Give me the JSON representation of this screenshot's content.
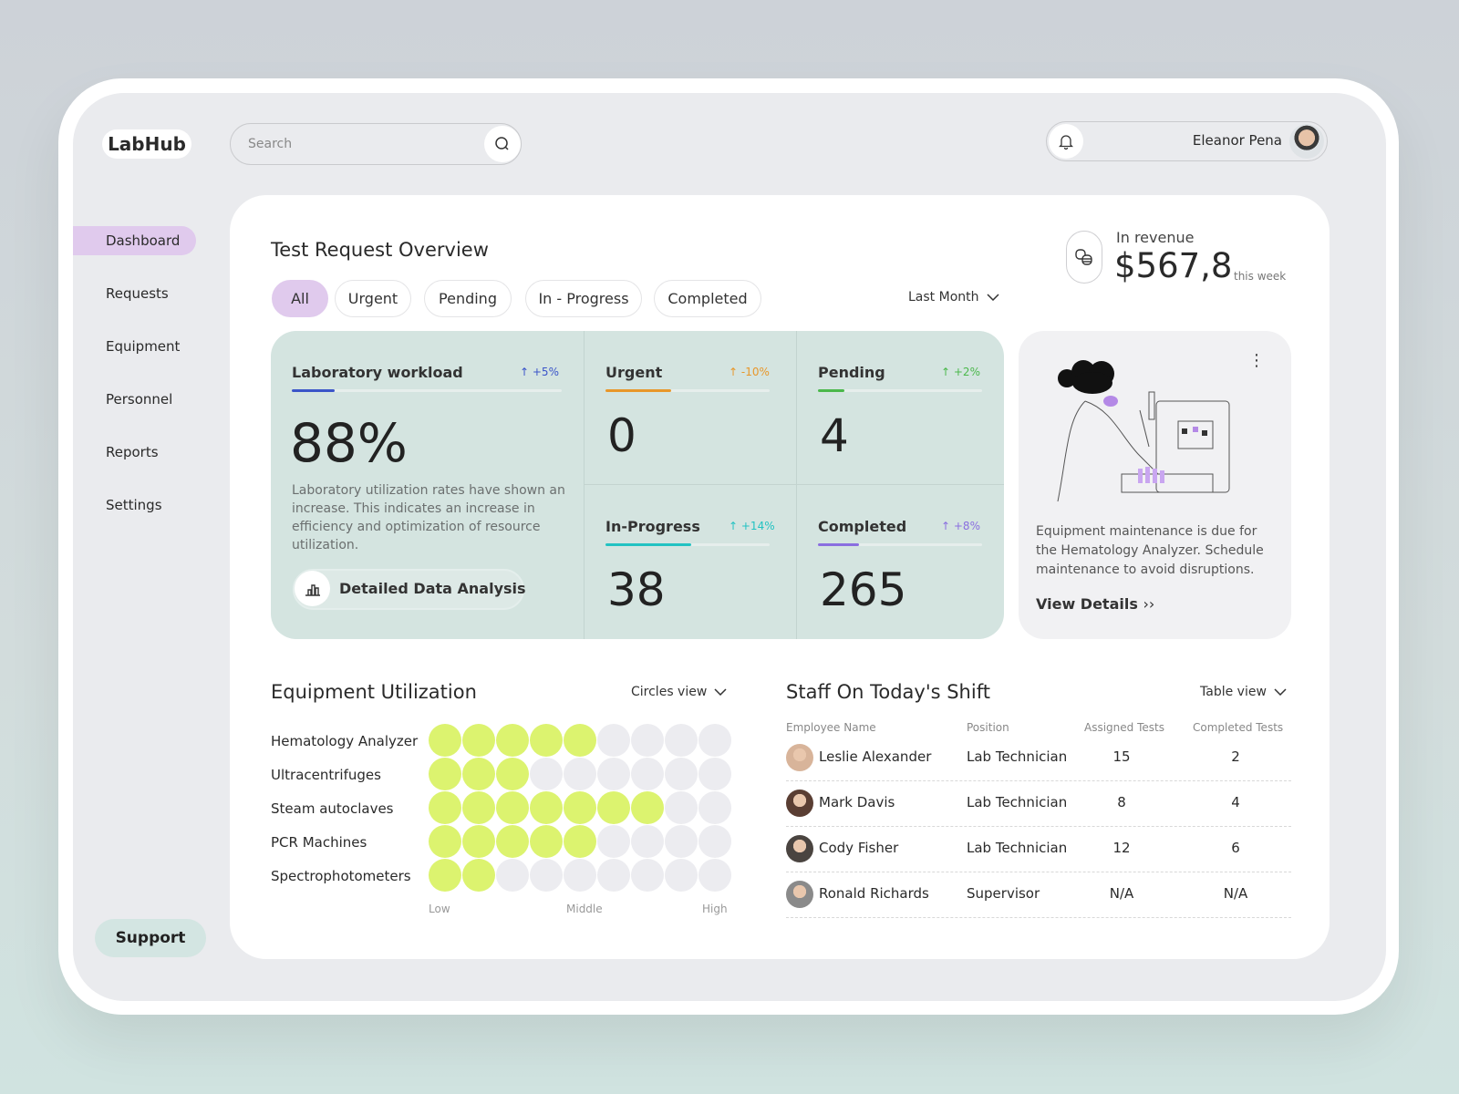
{
  "app": {
    "logo": "LabHub"
  },
  "header": {
    "search_placeholder": "Search",
    "user_name": "Eleanor Pena",
    "icons": {
      "search": "search-icon",
      "notification": "bell-icon"
    }
  },
  "sidebar": {
    "items": [
      {
        "label": "Dashboard",
        "active": true
      },
      {
        "label": "Requests"
      },
      {
        "label": "Equipment"
      },
      {
        "label": "Personnel"
      },
      {
        "label": "Reports"
      },
      {
        "label": "Settings"
      }
    ],
    "support": "Support"
  },
  "overview": {
    "title": "Test Request Overview",
    "filters": [
      {
        "label": "All",
        "active": true
      },
      {
        "label": "Urgent"
      },
      {
        "label": "Pending"
      },
      {
        "label": "In - Progress"
      },
      {
        "label": "Completed"
      }
    ],
    "period": "Last Month",
    "revenue": {
      "label": "In revenue",
      "value": "$567,8",
      "suffix": "this week"
    },
    "workload": {
      "label": "Laboratory workload",
      "delta": "+5%",
      "value": "88%",
      "progress": 0.16,
      "color": "#3b55c9",
      "description": "Laboratory utilization rates have shown an increase. This indicates an increase in efficiency and optimization of resource utilization.",
      "button": "Detailed Data Analysis"
    },
    "stats": [
      {
        "label": "Urgent",
        "delta": "-10%",
        "value": "0",
        "progress": 0.4,
        "color": "#e8972a"
      },
      {
        "label": "Pending",
        "delta": "+2%",
        "value": "4",
        "progress": 0.16,
        "color": "#4bb84b"
      },
      {
        "label": "In-Progress",
        "delta": "+14%",
        "value": "38",
        "progress": 0.52,
        "color": "#22c2c2"
      },
      {
        "label": "Completed",
        "delta": "+8%",
        "value": "265",
        "progress": 0.25,
        "color": "#8a6ee0"
      }
    ]
  },
  "maintenance": {
    "text": "Equipment maintenance is due for the Hematology Analyzer. Schedule maintenance to avoid disruptions.",
    "link": "View Details"
  },
  "equipment": {
    "title": "Equipment Utilization",
    "view": "Circles view",
    "scale": [
      "Low",
      "Middle",
      "High"
    ],
    "max": 9,
    "active_color": "#dcf36f",
    "inactive_color": "#ececf0",
    "rows": [
      {
        "name": "Hematology Analyzer",
        "value": 5
      },
      {
        "name": "Ultracentrifuges",
        "value": 3
      },
      {
        "name": "Steam autoclaves",
        "value": 7
      },
      {
        "name": "PCR Machines",
        "value": 5
      },
      {
        "name": "Spectrophotometers",
        "value": 2
      }
    ]
  },
  "staff": {
    "title": "Staff On Today's Shift",
    "view": "Table view",
    "columns": [
      "Employee Name",
      "Position",
      "Assigned Tests",
      "Completed Tests"
    ],
    "rows": [
      [
        "Leslie Alexander",
        "Lab Technician",
        "15",
        "2"
      ],
      [
        "Mark Davis",
        "Lab Technician",
        "8",
        "4"
      ],
      [
        "Cody Fisher",
        "Lab Technician",
        "12",
        "6"
      ],
      [
        "Ronald Richards",
        "Supervisor",
        "N/A",
        "N/A"
      ]
    ]
  }
}
